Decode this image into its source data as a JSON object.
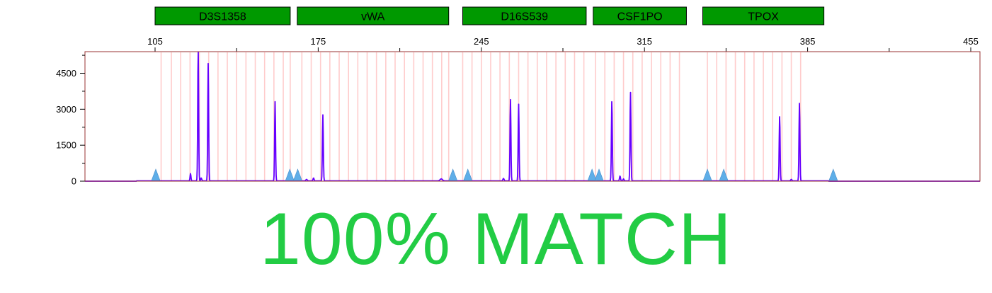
{
  "chart_data": {
    "type": "line",
    "title": "",
    "xlabel": "",
    "ylabel": "",
    "x_ticks": [
      105,
      175,
      245,
      315,
      385,
      455
    ],
    "y_ticks": [
      0,
      1500,
      3000,
      4500
    ],
    "xlim": [
      90,
      460
    ],
    "ylim": [
      0,
      5400
    ],
    "grid": false,
    "loci": [
      {
        "name": "D3S1358",
        "start": 105,
        "end": 163
      },
      {
        "name": "vWA",
        "start": 166,
        "end": 231
      },
      {
        "name": "D16S539",
        "start": 237,
        "end": 290
      },
      {
        "name": "CSF1PO",
        "start": 293,
        "end": 333
      },
      {
        "name": "TPOX",
        "start": 340,
        "end": 392
      }
    ],
    "bins": [
      107.6,
      112,
      116,
      120,
      124,
      128,
      132,
      136,
      140,
      144,
      148,
      152,
      156,
      160,
      163,
      168,
      172,
      176,
      180,
      184,
      188,
      192,
      196,
      200,
      204,
      208,
      212,
      216,
      220,
      224,
      228,
      231,
      237,
      241,
      245,
      249,
      253,
      257,
      261,
      265,
      269,
      273,
      277,
      281,
      285,
      289,
      294,
      298,
      302,
      306,
      310,
      314,
      318,
      322,
      326,
      330,
      342,
      346,
      350,
      354,
      358,
      362,
      366,
      370,
      374,
      378,
      382
    ],
    "markers": [
      105.3,
      162.8,
      166.2,
      232.8,
      239.2,
      292.5,
      295.5,
      342,
      349,
      396
    ],
    "series": [
      {
        "color": "#6600ff",
        "peaks": [
          {
            "x": 123.5,
            "height": 5450,
            "width": 0.55
          },
          {
            "x": 127.8,
            "height": 4900,
            "width": 0.55
          },
          {
            "x": 120.2,
            "height": 300,
            "width": 0.55
          },
          {
            "x": 124.8,
            "height": 120,
            "width": 0.6
          },
          {
            "x": 156.5,
            "height": 3300,
            "width": 0.55
          },
          {
            "x": 177.0,
            "height": 2750,
            "width": 0.55
          },
          {
            "x": 173.0,
            "height": 120,
            "width": 0.6
          },
          {
            "x": 170.0,
            "height": 60,
            "width": 0.8
          },
          {
            "x": 227.8,
            "height": 80,
            "width": 1.4
          },
          {
            "x": 257.5,
            "height": 3400,
            "width": 0.55
          },
          {
            "x": 261.0,
            "height": 3200,
            "width": 0.55
          },
          {
            "x": 254.5,
            "height": 100,
            "width": 0.7
          },
          {
            "x": 301.0,
            "height": 3350,
            "width": 0.55
          },
          {
            "x": 309.0,
            "height": 3700,
            "width": 0.55
          },
          {
            "x": 304.5,
            "height": 200,
            "width": 0.6
          },
          {
            "x": 306.0,
            "height": 80,
            "width": 0.6
          },
          {
            "x": 373.0,
            "height": 2700,
            "width": 0.55
          },
          {
            "x": 381.5,
            "height": 3250,
            "width": 0.55
          },
          {
            "x": 378.0,
            "height": 60,
            "width": 0.7
          }
        ]
      }
    ]
  },
  "colors": {
    "trace": "#6600ff",
    "locus_fill": "#009900",
    "bin_line": "#ffcccc",
    "marker": "#5eaee8",
    "plot_border": "#993333",
    "match_text": "#22cc44"
  },
  "result_text": "100% MATCH"
}
